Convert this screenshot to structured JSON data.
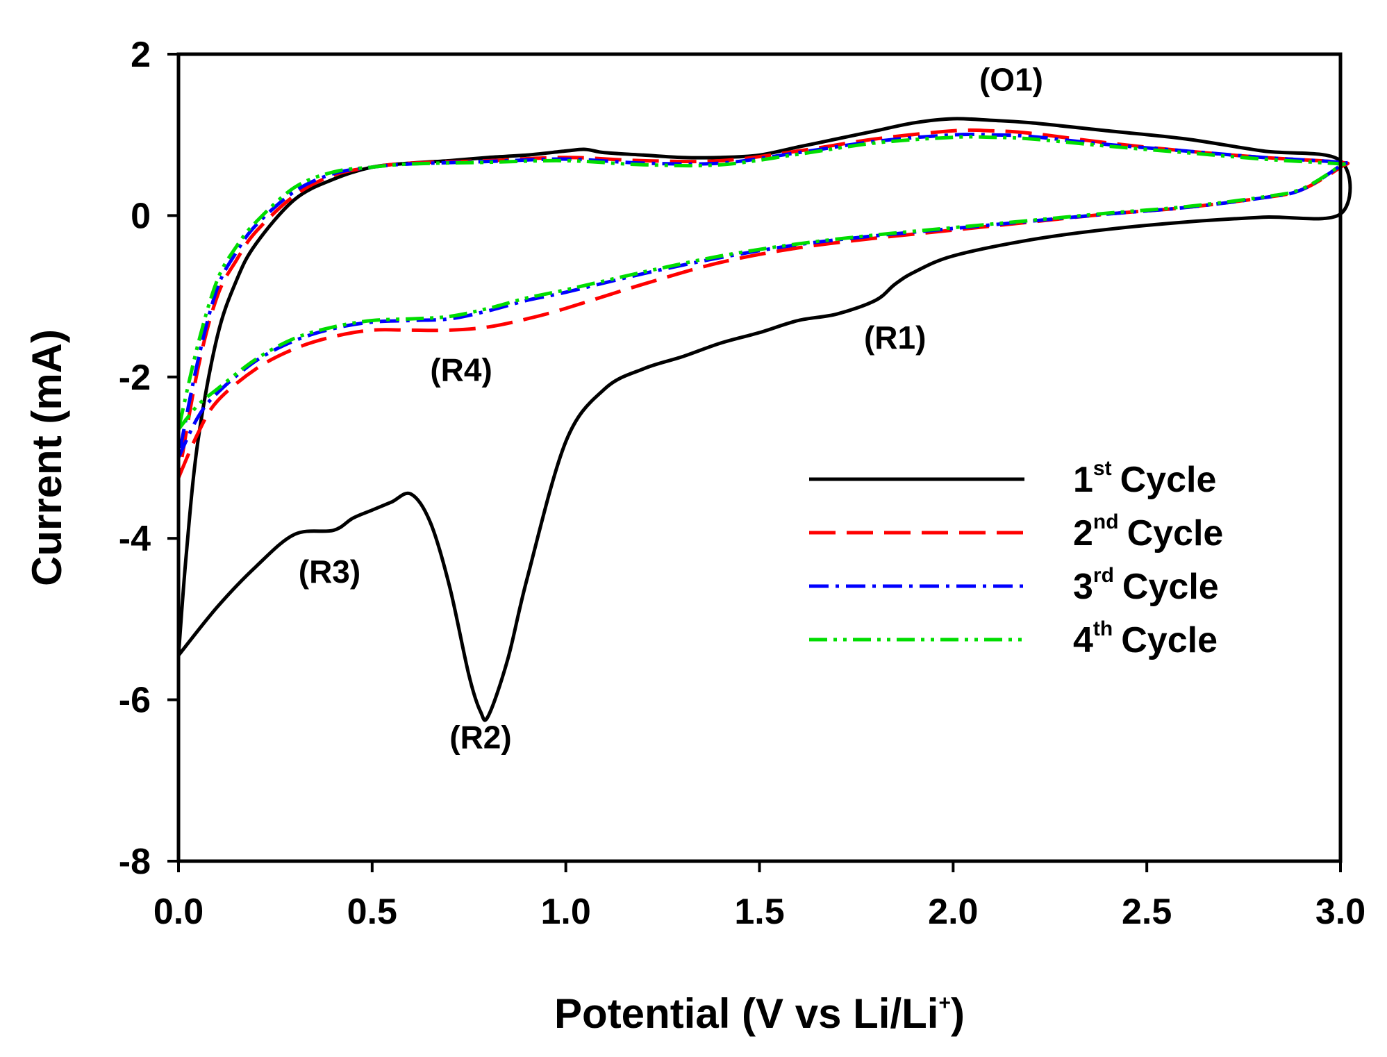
{
  "chart_data": {
    "type": "line",
    "title": "",
    "xlabel": "Potential (V vs Li/Li",
    "xlabel_sup": "+",
    "xlabel_end": ")",
    "ylabel": "Current (mA)",
    "xlim": [
      0,
      3
    ],
    "ylim": [
      -8,
      2
    ],
    "xticks": [
      0,
      0.5,
      1.0,
      1.5,
      2.0,
      2.5,
      3.0
    ],
    "xtick_labels": [
      "0.0",
      "0.5",
      "1.0",
      "1.5",
      "2.0",
      "2.5",
      "3.0"
    ],
    "yticks": [
      2,
      0,
      -2,
      -4,
      -6,
      -8
    ],
    "ytick_labels": [
      "2",
      "0",
      "-2",
      "-4",
      "-6",
      "-8"
    ],
    "grid": false,
    "legend_position": "center-right",
    "annotations": [
      {
        "label": "(O1)",
        "x": 2.15,
        "y": 1.55
      },
      {
        "label": "(R1)",
        "x": 1.85,
        "y": -1.65
      },
      {
        "label": "(R4)",
        "x": 0.73,
        "y": -2.05
      },
      {
        "label": "(R3)",
        "x": 0.39,
        "y": -4.55
      },
      {
        "label": "(R2)",
        "x": 0.78,
        "y": -6.6
      }
    ],
    "series": [
      {
        "name": "1st Cycle",
        "num": "1",
        "sup": "st",
        "word": "Cycle",
        "color": "#000000",
        "dash": "solid",
        "x": [
          0,
          0.1,
          0.2,
          0.3,
          0.4,
          0.45,
          0.5,
          0.55,
          0.6,
          0.65,
          0.7,
          0.75,
          0.78,
          0.8,
          0.85,
          0.9,
          1.0,
          1.1,
          1.2,
          1.3,
          1.4,
          1.5,
          1.6,
          1.7,
          1.8,
          1.85,
          1.9,
          2.0,
          2.2,
          2.4,
          2.6,
          2.8,
          3.0,
          3.0,
          2.8,
          2.6,
          2.4,
          2.2,
          2.1,
          2.0,
          1.9,
          1.8,
          1.7,
          1.6,
          1.5,
          1.4,
          1.3,
          1.2,
          1.1,
          1.05,
          1.0,
          0.9,
          0.8,
          0.7,
          0.6,
          0.5,
          0.4,
          0.3,
          0.2,
          0.15,
          0.1,
          0.05,
          0.02,
          0
        ],
        "y": [
          -5.45,
          -4.85,
          -4.35,
          -3.95,
          -3.9,
          -3.75,
          -3.65,
          -3.55,
          -3.45,
          -3.8,
          -4.6,
          -5.7,
          -6.15,
          -6.2,
          -5.5,
          -4.5,
          -2.8,
          -2.15,
          -1.9,
          -1.75,
          -1.58,
          -1.45,
          -1.3,
          -1.22,
          -1.05,
          -0.85,
          -0.7,
          -0.5,
          -0.3,
          -0.17,
          -0.08,
          -0.02,
          0.02,
          0.68,
          0.8,
          0.95,
          1.05,
          1.15,
          1.18,
          1.2,
          1.15,
          1.05,
          0.95,
          0.85,
          0.75,
          0.72,
          0.72,
          0.75,
          0.78,
          0.82,
          0.8,
          0.75,
          0.72,
          0.68,
          0.65,
          0.6,
          0.45,
          0.2,
          -0.35,
          -0.8,
          -1.5,
          -2.8,
          -4.2,
          -5.45
        ]
      },
      {
        "name": "2nd Cycle",
        "num": "2",
        "sup": "nd",
        "word": "Cycle",
        "color": "#ff0000",
        "dash": "dashed",
        "x": [
          0,
          0.05,
          0.1,
          0.2,
          0.3,
          0.4,
          0.5,
          0.6,
          0.7,
          0.8,
          0.9,
          1.0,
          1.2,
          1.4,
          1.6,
          1.8,
          2.0,
          2.2,
          2.4,
          2.6,
          2.8,
          2.9,
          3.0,
          3.0,
          2.8,
          2.6,
          2.4,
          2.2,
          2.1,
          2.0,
          1.8,
          1.6,
          1.4,
          1.2,
          1.0,
          0.8,
          0.6,
          0.5,
          0.4,
          0.3,
          0.2,
          0.15,
          0.1,
          0.05,
          0
        ],
        "y": [
          -3.25,
          -2.7,
          -2.3,
          -1.9,
          -1.65,
          -1.5,
          -1.42,
          -1.42,
          -1.42,
          -1.38,
          -1.28,
          -1.15,
          -0.85,
          -0.58,
          -0.4,
          -0.28,
          -0.18,
          -0.08,
          0.02,
          0.1,
          0.22,
          0.32,
          0.6,
          0.66,
          0.72,
          0.8,
          0.9,
          1.02,
          1.05,
          1.05,
          0.95,
          0.8,
          0.68,
          0.68,
          0.72,
          0.68,
          0.65,
          0.6,
          0.5,
          0.25,
          -0.2,
          -0.55,
          -1.0,
          -1.9,
          -3.25
        ]
      },
      {
        "name": "3rd Cycle",
        "num": "3",
        "sup": "rd",
        "word": "Cycle",
        "color": "#0000ff",
        "dash": "dashdot",
        "x": [
          0,
          0.05,
          0.1,
          0.2,
          0.3,
          0.4,
          0.5,
          0.6,
          0.7,
          0.8,
          0.9,
          1.0,
          1.2,
          1.4,
          1.6,
          1.8,
          2.0,
          2.2,
          2.4,
          2.6,
          2.8,
          2.9,
          3.0,
          3.0,
          2.8,
          2.6,
          2.4,
          2.2,
          2.1,
          2.0,
          1.8,
          1.6,
          1.4,
          1.2,
          1.0,
          0.8,
          0.6,
          0.5,
          0.4,
          0.3,
          0.2,
          0.15,
          0.1,
          0.05,
          0
        ],
        "y": [
          -3.0,
          -2.5,
          -2.2,
          -1.8,
          -1.55,
          -1.4,
          -1.32,
          -1.3,
          -1.28,
          -1.18,
          -1.05,
          -0.95,
          -0.72,
          -0.52,
          -0.36,
          -0.25,
          -0.16,
          -0.07,
          0.02,
          0.1,
          0.22,
          0.32,
          0.62,
          0.66,
          0.72,
          0.8,
          0.88,
          0.98,
          1.0,
          1.0,
          0.92,
          0.78,
          0.65,
          0.65,
          0.7,
          0.67,
          0.64,
          0.6,
          0.52,
          0.3,
          -0.12,
          -0.45,
          -0.9,
          -1.8,
          -3.0
        ]
      },
      {
        "name": "4th Cycle",
        "num": "4",
        "sup": "th",
        "word": "Cycle",
        "color": "#00dd00",
        "dash": "dashdotdot",
        "x": [
          0,
          0.05,
          0.1,
          0.2,
          0.3,
          0.4,
          0.5,
          0.6,
          0.7,
          0.8,
          0.9,
          1.0,
          1.2,
          1.4,
          1.6,
          1.8,
          2.0,
          2.2,
          2.4,
          2.6,
          2.8,
          2.9,
          3.0,
          3.0,
          2.8,
          2.6,
          2.4,
          2.2,
          2.1,
          2.0,
          1.8,
          1.6,
          1.4,
          1.2,
          1.0,
          0.8,
          0.6,
          0.5,
          0.4,
          0.3,
          0.2,
          0.15,
          0.1,
          0.05,
          0
        ],
        "y": [
          -2.65,
          -2.35,
          -2.15,
          -1.78,
          -1.52,
          -1.38,
          -1.3,
          -1.28,
          -1.25,
          -1.15,
          -1.02,
          -0.92,
          -0.7,
          -0.5,
          -0.35,
          -0.24,
          -0.15,
          -0.06,
          0.03,
          0.11,
          0.23,
          0.33,
          0.62,
          0.64,
          0.7,
          0.78,
          0.86,
          0.95,
          0.97,
          0.97,
          0.9,
          0.76,
          0.63,
          0.63,
          0.68,
          0.66,
          0.64,
          0.6,
          0.54,
          0.35,
          -0.08,
          -0.38,
          -0.8,
          -1.6,
          -2.65
        ]
      }
    ]
  }
}
